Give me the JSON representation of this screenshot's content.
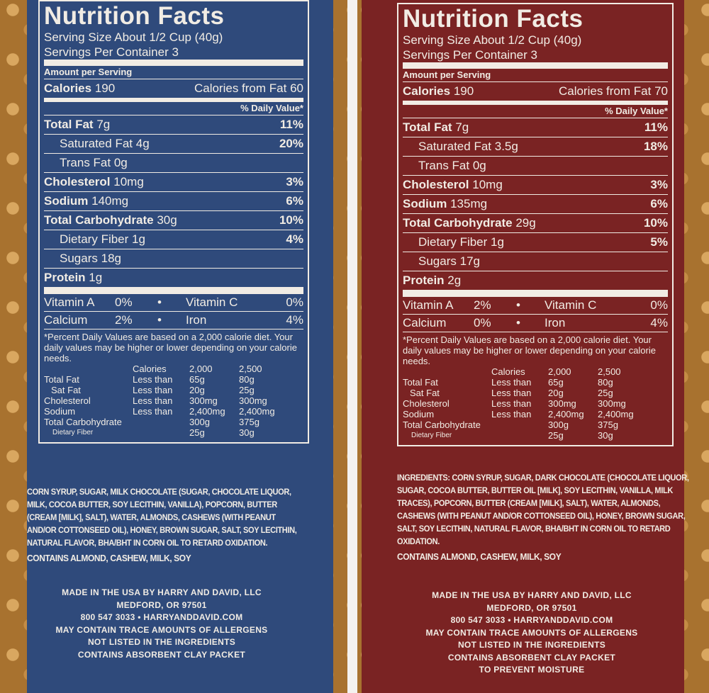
{
  "labels": [
    {
      "title": "Nutrition Facts",
      "serving_size": [
        "Serving Size",
        "About 1/2 Cup (40g)"
      ],
      "servings": [
        "Servings Per Container",
        "3"
      ],
      "amount_per_serving": "Amount per Serving",
      "calories": [
        "Calories",
        "190",
        "Calories from Fat",
        "60"
      ],
      "dv_header": "% Daily Value*",
      "nutrients": [
        {
          "name": "Total Fat",
          "amount": "7g",
          "dv": "11%",
          "sub": [
            {
              "name": "Saturated Fat",
              "amount": "4g",
              "dv": "20%"
            },
            {
              "name": "Trans Fat",
              "amount": "0g",
              "dv": null
            }
          ]
        },
        {
          "name": "Cholesterol",
          "amount": "10mg",
          "dv": "3%",
          "sub": []
        },
        {
          "name": "Sodium",
          "amount": "140mg",
          "dv": "6%",
          "sub": []
        },
        {
          "name": "Total Carbohydrate",
          "amount": "30g",
          "dv": "10%",
          "sub": [
            {
              "name": "Dietary Fiber",
              "amount": "1g",
              "dv": "4%"
            },
            {
              "name": "Sugars",
              "amount": "18g",
              "dv": null
            }
          ]
        },
        {
          "name": "Protein",
          "amount": "1g",
          "dv": null,
          "sub": []
        }
      ],
      "vitamins": [
        [
          "Vitamin A",
          "0%",
          "Vitamin C",
          "0%"
        ],
        [
          "Calcium",
          "2%",
          "Iron",
          "4%"
        ]
      ],
      "footnote": "*Percent Daily Values are based on a 2,000 calorie diet. Your daily values may be higher or lower depending on your calorie needs.",
      "table_header": [
        "Calories",
        "2,000",
        "2,500"
      ],
      "table_rows": [
        [
          "Total Fat",
          "Less than",
          "65g",
          "80g"
        ],
        [
          "Sat Fat",
          "Less than",
          "20g",
          "25g"
        ],
        [
          "Cholesterol",
          "Less than",
          "300mg",
          "300mg"
        ],
        [
          "Sodium",
          "Less than",
          "2,400mg",
          "2,400mg"
        ],
        [
          "Total Carbohydrate",
          null,
          "300g",
          "375g"
        ],
        [
          "Dietary Fiber",
          null,
          "25g",
          "30g"
        ]
      ],
      "ingredients": "CORN SYRUP, SUGAR, MILK CHOCOLATE (SUGAR, CHOCOLATE LIQUOR, MILK, COCOA BUTTER, SOY LECITHIN, VANILLA), POPCORN, BUTTER (CREAM [MILK], SALT), WATER, ALMONDS, CASHEWS (WITH PEANUT AND/OR COTTONSEED OIL), HONEY, BROWN SUGAR, SALT, SOY LECITHIN, NATURAL FLAVOR, BHA/BHT IN CORN OIL TO RETARD OXIDATION.",
      "contains": "CONTAINS ALMOND, CASHEW, MILK, SOY",
      "footer": [
        "MADE IN THE USA BY HARRY AND DAVID, LLC",
        "MEDFORD, OR 97501",
        "800 547 3033 • HARRYANDDAVID.COM",
        "MAY CONTAIN TRACE AMOUNTS OF ALLERGENS",
        "NOT LISTED IN THE INGREDIENTS",
        "CONTAINS ABSORBENT CLAY PACKET"
      ]
    },
    {
      "title": "Nutrition Facts",
      "serving_size": [
        "Serving Size",
        "About 1/2 Cup (40g)"
      ],
      "servings": [
        "Servings Per Container",
        "3"
      ],
      "amount_per_serving": "Amount per Serving",
      "calories": [
        "Calories",
        "190",
        "Calories from Fat",
        "70"
      ],
      "dv_header": "% Daily Value*",
      "nutrients": [
        {
          "name": "Total Fat",
          "amount": "7g",
          "dv": "11%",
          "sub": [
            {
              "name": "Saturated Fat",
              "amount": "3.5g",
              "dv": "18%"
            },
            {
              "name": "Trans Fat",
              "amount": "0g",
              "dv": null
            }
          ]
        },
        {
          "name": "Cholesterol",
          "amount": "10mg",
          "dv": "3%",
          "sub": []
        },
        {
          "name": "Sodium",
          "amount": "135mg",
          "dv": "6%",
          "sub": []
        },
        {
          "name": "Total Carbohydrate",
          "amount": "29g",
          "dv": "10%",
          "sub": [
            {
              "name": "Dietary Fiber",
              "amount": "1g",
              "dv": "5%"
            },
            {
              "name": "Sugars",
              "amount": "17g",
              "dv": null
            }
          ]
        },
        {
          "name": "Protein",
          "amount": "2g",
          "dv": null,
          "sub": []
        }
      ],
      "vitamins": [
        [
          "Vitamin A",
          "2%",
          "Vitamin C",
          "0%"
        ],
        [
          "Calcium",
          "0%",
          "Iron",
          "4%"
        ]
      ],
      "footnote": "*Percent Daily Values are based on a 2,000 calorie diet. Your daily values may be higher or lower depending on your calorie needs.",
      "table_header": [
        "Calories",
        "2,000",
        "2,500"
      ],
      "table_rows": [
        [
          "Total Fat",
          "Less than",
          "65g",
          "80g"
        ],
        [
          "Sat Fat",
          "Less than",
          "20g",
          "25g"
        ],
        [
          "Cholesterol",
          "Less than",
          "300mg",
          "300mg"
        ],
        [
          "Sodium",
          "Less than",
          "2,400mg",
          "2,400mg"
        ],
        [
          "Total Carbohydrate",
          null,
          "300g",
          "375g"
        ],
        [
          "Dietary Fiber",
          null,
          "25g",
          "30g"
        ]
      ],
      "ingredients": "INGREDIENTS: CORN SYRUP, SUGAR, DARK CHOCOLATE (CHOCOLATE LIQUOR, SUGAR, COCOA BUTTER, BUTTER OIL [MILK], SOY LECITHIN, VANILLA, MILK TRACES), POPCORN, BUTTER (CREAM [MILK], SALT), WATER, ALMONDS, CASHEWS (WITH PEANUT AND/OR COTTONSEED OIL), HONEY, BROWN SUGAR, SALT, SOY LECITHIN, NATURAL FLAVOR, BHA/BHT IN CORN OIL TO RETARD OXIDATION.",
      "contains": "CONTAINS ALMOND, CASHEW, MILK, SOY",
      "footer": [
        "MADE IN THE USA BY HARRY AND DAVID, LLC",
        "MEDFORD, OR 97501",
        "800 547 3033 • HARRYANDDAVID.COM",
        "MAY CONTAIN TRACE AMOUNTS OF ALLERGENS",
        "NOT LISTED IN THE INGREDIENTS",
        "CONTAINS ABSORBENT CLAY PACKET",
        "TO PREVENT MOISTURE"
      ]
    }
  ]
}
